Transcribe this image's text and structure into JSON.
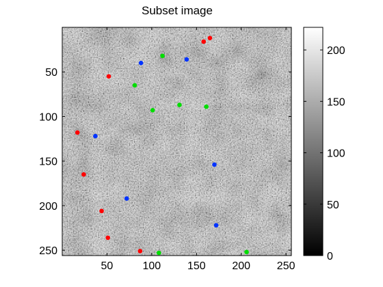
{
  "chart_data": {
    "type": "scatter",
    "title": "Subset image",
    "xlabel": "",
    "ylabel": "",
    "xlim": [
      0,
      256
    ],
    "ylim": [
      256,
      0
    ],
    "x_ticks": [
      50,
      100,
      150,
      200,
      250
    ],
    "y_ticks": [
      50,
      100,
      150,
      200,
      250
    ],
    "background": "grayscale noise image",
    "colormap": "gray",
    "colorbar": {
      "range": [
        0,
        222
      ],
      "ticks": [
        0,
        50,
        100,
        150,
        200
      ]
    },
    "series": [
      {
        "color": "#ff0000",
        "points": [
          {
            "x": 165,
            "y": 12
          },
          {
            "x": 158,
            "y": 16
          },
          {
            "x": 52,
            "y": 55
          },
          {
            "x": 17,
            "y": 118
          },
          {
            "x": 24,
            "y": 165
          },
          {
            "x": 44,
            "y": 206
          },
          {
            "x": 51,
            "y": 236
          },
          {
            "x": 87,
            "y": 251
          }
        ]
      },
      {
        "color": "#0033ff",
        "points": [
          {
            "x": 88,
            "y": 40
          },
          {
            "x": 139,
            "y": 36
          },
          {
            "x": 37,
            "y": 122
          },
          {
            "x": 170,
            "y": 154
          },
          {
            "x": 72,
            "y": 192
          },
          {
            "x": 172,
            "y": 222
          }
        ]
      },
      {
        "color": "#00dd00",
        "points": [
          {
            "x": 112,
            "y": 32
          },
          {
            "x": 81,
            "y": 65
          },
          {
            "x": 101,
            "y": 93
          },
          {
            "x": 131,
            "y": 87
          },
          {
            "x": 161,
            "y": 89
          },
          {
            "x": 108,
            "y": 253
          },
          {
            "x": 206,
            "y": 252
          }
        ]
      }
    ]
  }
}
